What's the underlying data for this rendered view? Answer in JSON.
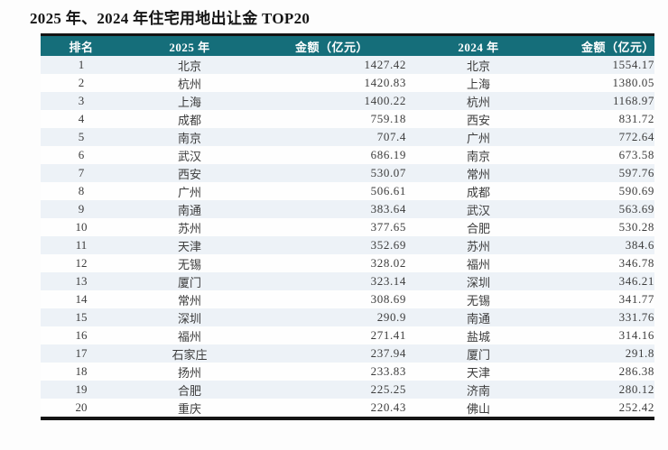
{
  "title": "2025 年、2024 年住宅用地出让金 TOP20",
  "colors": {
    "header_bg": "#156e7a",
    "header_text": "#ffffff",
    "stripe": "#edf2f7",
    "border": "#141414",
    "body_text": "#3c3c3c"
  },
  "table": {
    "headers": [
      "排名",
      "2025 年",
      "金额（亿元）",
      "2024 年",
      "金额（亿元）"
    ],
    "rows": [
      {
        "rank": "1",
        "city_2025": "北京",
        "amount_2025": "1427.42",
        "city_2024": "北京",
        "amount_2024": "1554.17"
      },
      {
        "rank": "2",
        "city_2025": "杭州",
        "amount_2025": "1420.83",
        "city_2024": "上海",
        "amount_2024": "1380.05"
      },
      {
        "rank": "3",
        "city_2025": "上海",
        "amount_2025": "1400.22",
        "city_2024": "杭州",
        "amount_2024": "1168.97"
      },
      {
        "rank": "4",
        "city_2025": "成都",
        "amount_2025": "759.18",
        "city_2024": "西安",
        "amount_2024": "831.72"
      },
      {
        "rank": "5",
        "city_2025": "南京",
        "amount_2025": "707.4",
        "city_2024": "广州",
        "amount_2024": "772.64"
      },
      {
        "rank": "6",
        "city_2025": "武汉",
        "amount_2025": "686.19",
        "city_2024": "南京",
        "amount_2024": "673.58"
      },
      {
        "rank": "7",
        "city_2025": "西安",
        "amount_2025": "530.07",
        "city_2024": "常州",
        "amount_2024": "597.76"
      },
      {
        "rank": "8",
        "city_2025": "广州",
        "amount_2025": "506.61",
        "city_2024": "成都",
        "amount_2024": "590.69"
      },
      {
        "rank": "9",
        "city_2025": "南通",
        "amount_2025": "383.64",
        "city_2024": "武汉",
        "amount_2024": "563.69"
      },
      {
        "rank": "10",
        "city_2025": "苏州",
        "amount_2025": "377.65",
        "city_2024": "合肥",
        "amount_2024": "530.28"
      },
      {
        "rank": "11",
        "city_2025": "天津",
        "amount_2025": "352.69",
        "city_2024": "苏州",
        "amount_2024": "384.6"
      },
      {
        "rank": "12",
        "city_2025": "无锡",
        "amount_2025": "328.02",
        "city_2024": "福州",
        "amount_2024": "346.78"
      },
      {
        "rank": "13",
        "city_2025": "厦门",
        "amount_2025": "323.14",
        "city_2024": "深圳",
        "amount_2024": "346.21"
      },
      {
        "rank": "14",
        "city_2025": "常州",
        "amount_2025": "308.69",
        "city_2024": "无锡",
        "amount_2024": "341.77"
      },
      {
        "rank": "15",
        "city_2025": "深圳",
        "amount_2025": "290.9",
        "city_2024": "南通",
        "amount_2024": "331.76"
      },
      {
        "rank": "16",
        "city_2025": "福州",
        "amount_2025": "271.41",
        "city_2024": "盐城",
        "amount_2024": "314.16"
      },
      {
        "rank": "17",
        "city_2025": "石家庄",
        "amount_2025": "237.94",
        "city_2024": "厦门",
        "amount_2024": "291.8"
      },
      {
        "rank": "18",
        "city_2025": "扬州",
        "amount_2025": "233.83",
        "city_2024": "天津",
        "amount_2024": "286.38"
      },
      {
        "rank": "19",
        "city_2025": "合肥",
        "amount_2025": "225.25",
        "city_2024": "济南",
        "amount_2024": "280.12"
      },
      {
        "rank": "20",
        "city_2025": "重庆",
        "amount_2025": "220.43",
        "city_2024": "佛山",
        "amount_2024": "252.42"
      }
    ]
  }
}
